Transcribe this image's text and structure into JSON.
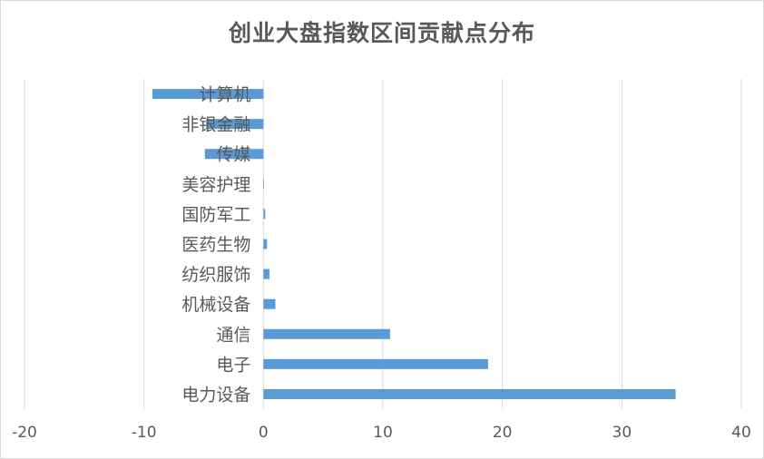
{
  "chart_data": {
    "type": "bar",
    "orientation": "horizontal",
    "title": "创业大盘指数区间贡献点分布",
    "categories": [
      "计算机",
      "非银金融",
      "传媒",
      "美容护理",
      "国防军工",
      "医药生物",
      "纺织服饰",
      "机械设备",
      "通信",
      "电子",
      "电力设备"
    ],
    "values": [
      -9.3,
      -4.8,
      -4.9,
      0.05,
      0.15,
      0.3,
      0.5,
      1.0,
      10.6,
      18.8,
      34.5
    ],
    "xlim": [
      -20,
      40
    ],
    "xticks": [
      -20,
      -10,
      0,
      10,
      20,
      30,
      40
    ],
    "xlabel": "",
    "ylabel": "",
    "grid": "vertical",
    "legend": "none",
    "bar_color": "#5b9bd5",
    "grid_color": "#d9d9d9"
  }
}
